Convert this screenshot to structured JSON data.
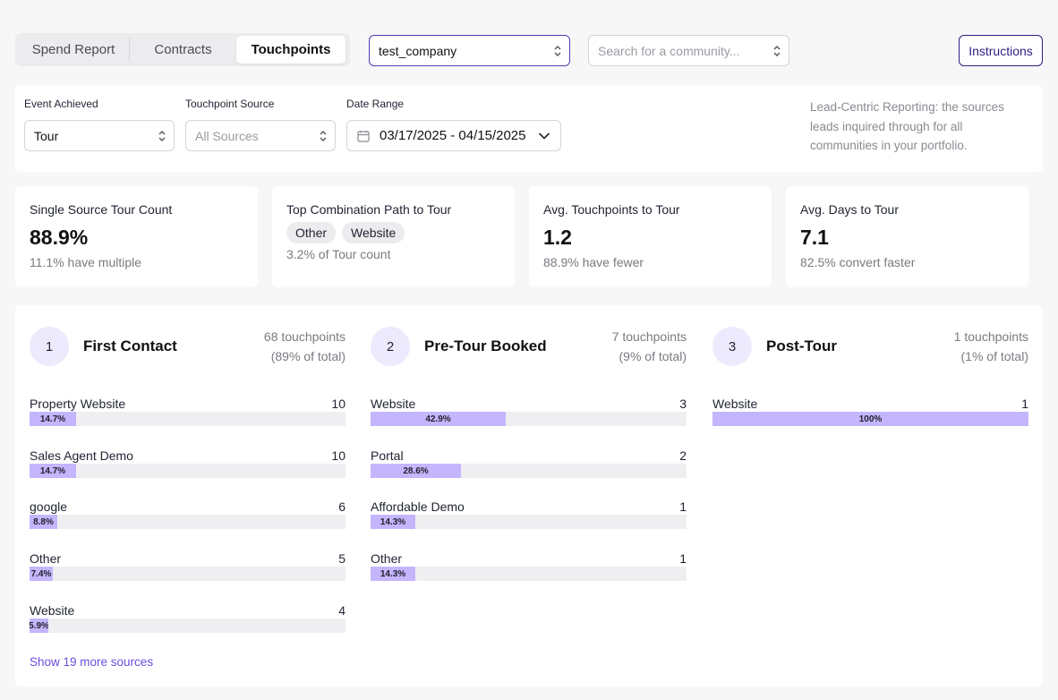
{
  "tabs": [
    {
      "label": "Spend Report"
    },
    {
      "label": "Contracts"
    },
    {
      "label": "Touchpoints"
    }
  ],
  "company_select": {
    "value": "test_company"
  },
  "community_select": {
    "placeholder": "Search for a community..."
  },
  "instructions_label": "Instructions",
  "filters": {
    "event_label": "Event Achieved",
    "event_value": "Tour",
    "source_label": "Touchpoint Source",
    "source_placeholder": "All Sources",
    "date_label": "Date Range",
    "date_value": "03/17/2025 - 04/15/2025",
    "note": "Lead-Centric Reporting: the sources leads inquired through for all communities in your portfolio."
  },
  "cards": [
    {
      "title": "Single Source Tour Count",
      "value": "88.9%",
      "sub": "11.1% have multiple"
    },
    {
      "title": "Top Combination Path to Tour",
      "pills": [
        "Other",
        "Website"
      ],
      "sub": "3.2% of Tour count"
    },
    {
      "title": "Avg. Touchpoints to Tour",
      "value": "1.2",
      "sub": "88.9% have fewer"
    },
    {
      "title": "Avg. Days to Tour",
      "value": "7.1",
      "sub": "82.5% convert faster"
    }
  ],
  "stages": [
    {
      "num": "1",
      "title": "First Contact",
      "count": "68 touchpoints",
      "pct": "(89% of total)",
      "rows": [
        {
          "name": "Property Website",
          "value": "10",
          "label": "14.7%",
          "fraction": 0.147
        },
        {
          "name": "Sales Agent Demo",
          "value": "10",
          "label": "14.7%",
          "fraction": 0.147
        },
        {
          "name": "google",
          "value": "6",
          "label": "8.8%",
          "fraction": 0.088
        },
        {
          "name": "Other",
          "value": "5",
          "label": "7.4%",
          "fraction": 0.074
        },
        {
          "name": "Website",
          "value": "4",
          "label": "5.9%",
          "fraction": 0.059
        }
      ]
    },
    {
      "num": "2",
      "title": "Pre-Tour Booked",
      "count": "7 touchpoints",
      "pct": "(9% of total)",
      "rows": [
        {
          "name": "Website",
          "value": "3",
          "label": "42.9%",
          "fraction": 0.429
        },
        {
          "name": "Portal",
          "value": "2",
          "label": "28.6%",
          "fraction": 0.286
        },
        {
          "name": "Affordable Demo",
          "value": "1",
          "label": "14.3%",
          "fraction": 0.143
        },
        {
          "name": "Other",
          "value": "1",
          "label": "14.3%",
          "fraction": 0.143
        }
      ]
    },
    {
      "num": "3",
      "title": "Post-Tour",
      "count": "1 touchpoints",
      "pct": "(1% of total)",
      "rows": [
        {
          "name": "Website",
          "value": "1",
          "label": "100%",
          "fraction": 1.0
        }
      ]
    }
  ],
  "more_link": "Show 19 more sources",
  "colors": {
    "accent": "#4c3fb4",
    "bar_fill": "#c4b5fd",
    "bar_track": "#efeff2",
    "badge_bg": "#eeeafd",
    "link": "#6d4de0"
  },
  "icons": [
    "updown-chevron-icon",
    "calendar-icon",
    "chevron-down-icon"
  ]
}
